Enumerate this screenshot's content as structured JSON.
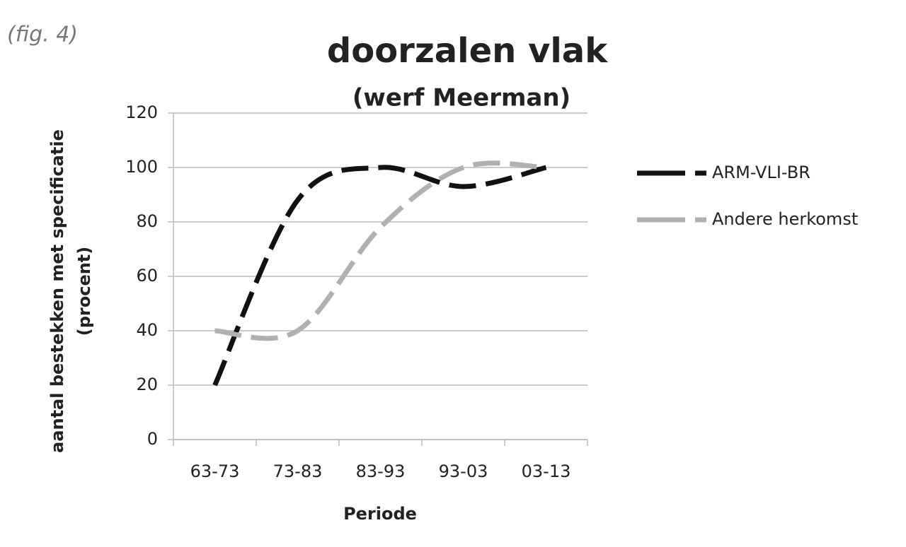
{
  "chart_data": {
    "type": "line",
    "figure_label": "(fig. 4)",
    "title": "doorzalen vlak",
    "subtitle": "(werf Meerman)",
    "y_label": [
      "aantal bestekken met specificatie",
      "(procent)"
    ],
    "x_label": "Periode",
    "categories": [
      "63-73",
      "73-83",
      "83-93",
      "93-03",
      "03-13"
    ],
    "series": [
      {
        "name": "ARM-VLI-BR",
        "color": "#111111",
        "values": [
          20,
          88,
          100,
          93,
          100
        ]
      },
      {
        "name": "Andere herkomst",
        "color": "#b0b0b0",
        "values": [
          40,
          40,
          78,
          100,
          100
        ]
      }
    ],
    "ylim": [
      0,
      120
    ],
    "yticks": [
      0,
      20,
      40,
      60,
      80,
      100,
      120
    ],
    "grid": true,
    "smooth": true,
    "dashed": true,
    "legend": "right"
  }
}
